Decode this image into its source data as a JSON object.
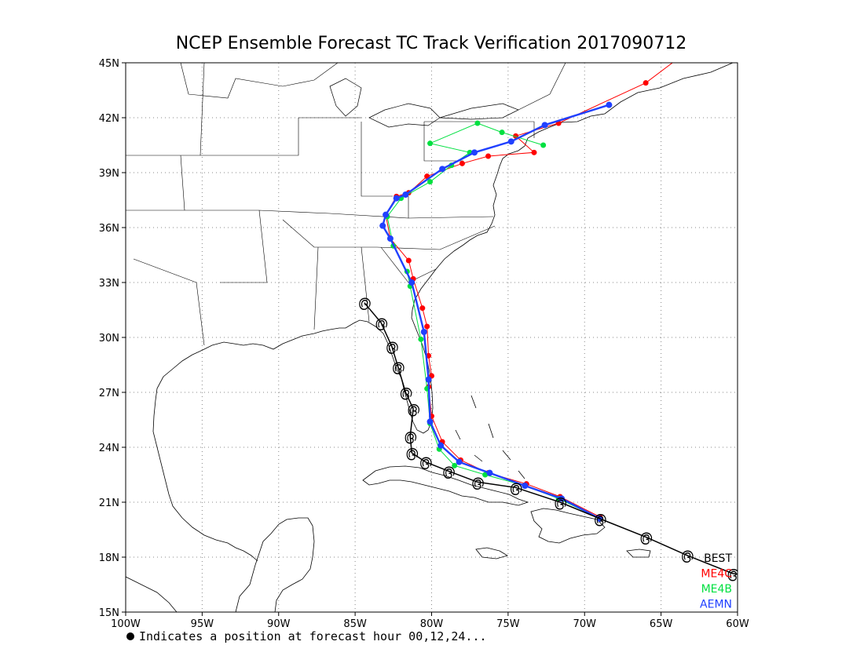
{
  "chart_data": {
    "type": "line",
    "title": "NCEP Ensemble Forecast TC Track Verification 2017090712",
    "xlim": [
      -100,
      -60
    ],
    "ylim": [
      15,
      45
    ],
    "x_ticks": [
      {
        "value": -100,
        "label": "100W"
      },
      {
        "value": -95,
        "label": "95W"
      },
      {
        "value": -90,
        "label": "90W"
      },
      {
        "value": -85,
        "label": "85W"
      },
      {
        "value": -80,
        "label": "80W"
      },
      {
        "value": -75,
        "label": "75W"
      },
      {
        "value": -70,
        "label": "70W"
      },
      {
        "value": -65,
        "label": "65W"
      },
      {
        "value": -60,
        "label": "60W"
      }
    ],
    "y_ticks": [
      {
        "value": 15,
        "label": "15N"
      },
      {
        "value": 18,
        "label": "18N"
      },
      {
        "value": 21,
        "label": "21N"
      },
      {
        "value": 24,
        "label": "24N"
      },
      {
        "value": 27,
        "label": "27N"
      },
      {
        "value": 30,
        "label": "30N"
      },
      {
        "value": 33,
        "label": "33N"
      },
      {
        "value": 36,
        "label": "36N"
      },
      {
        "value": 39,
        "label": "39N"
      },
      {
        "value": 42,
        "label": "42N"
      },
      {
        "value": 45,
        "label": "45N"
      }
    ],
    "grid": "dotted",
    "legend_position": "bottom-right",
    "colors": {
      "BEST": "#000000",
      "ME4C": "#ff0000",
      "ME4B": "#00e040",
      "AEMN": "#2040ff"
    },
    "series": [
      {
        "name": "BEST",
        "symbol": "hurricane",
        "points": [
          [
            -59.2,
            17.0
          ],
          [
            -60.3,
            17.1
          ],
          [
            -63.3,
            18.1
          ],
          [
            -66.0,
            19.1
          ],
          [
            -69.0,
            20.1
          ],
          [
            -71.6,
            21.0
          ],
          [
            -74.5,
            21.8
          ],
          [
            -77.0,
            22.1
          ],
          [
            -78.9,
            22.7
          ],
          [
            -80.4,
            23.2
          ],
          [
            -81.3,
            23.7
          ],
          [
            -81.4,
            24.6
          ],
          [
            -81.2,
            26.1
          ],
          [
            -81.7,
            27.0
          ],
          [
            -82.2,
            28.4
          ],
          [
            -82.6,
            29.5
          ],
          [
            -83.3,
            30.8
          ],
          [
            -84.4,
            31.9
          ]
        ]
      },
      {
        "name": "ME4C",
        "points": [
          [
            -69.0,
            20.2
          ],
          [
            -71.6,
            21.3
          ],
          [
            -73.8,
            22.0
          ],
          [
            -76.3,
            22.6
          ],
          [
            -78.1,
            23.3
          ],
          [
            -79.3,
            24.3
          ],
          [
            -80.0,
            25.7
          ],
          [
            -80.2,
            27.3
          ],
          [
            -80.0,
            27.9
          ],
          [
            -80.2,
            29.0
          ],
          [
            -80.3,
            30.6
          ],
          [
            -80.6,
            31.6
          ],
          [
            -81.2,
            33.2
          ],
          [
            -81.5,
            34.2
          ],
          [
            -82.7,
            35.4
          ],
          [
            -83.0,
            36.7
          ],
          [
            -82.3,
            37.7
          ],
          [
            -81.5,
            37.9
          ],
          [
            -80.3,
            38.8
          ],
          [
            -78.0,
            39.5
          ],
          [
            -76.3,
            39.9
          ],
          [
            -73.3,
            40.1
          ],
          [
            -74.5,
            41.0
          ],
          [
            -71.7,
            41.7
          ],
          [
            -66.0,
            43.9
          ],
          [
            -59.5,
            48.0
          ]
        ]
      },
      {
        "name": "ME4B",
        "points": [
          [
            -69.0,
            20.1
          ],
          [
            -71.7,
            21.2
          ],
          [
            -73.9,
            21.9
          ],
          [
            -76.5,
            22.5
          ],
          [
            -78.5,
            23.0
          ],
          [
            -79.5,
            23.9
          ],
          [
            -80.1,
            25.3
          ],
          [
            -80.3,
            27.2
          ],
          [
            -80.7,
            29.9
          ],
          [
            -81.4,
            32.8
          ],
          [
            -81.6,
            33.6
          ],
          [
            -82.5,
            35.0
          ],
          [
            -82.9,
            36.6
          ],
          [
            -82.0,
            37.6
          ],
          [
            -80.1,
            38.5
          ],
          [
            -78.7,
            39.4
          ],
          [
            -77.5,
            40.1
          ],
          [
            -80.1,
            40.6
          ],
          [
            -77.0,
            41.7
          ],
          [
            -75.4,
            41.2
          ],
          [
            -72.7,
            40.5
          ]
        ]
      },
      {
        "name": "AEMN",
        "points": [
          [
            -69.0,
            20.1
          ],
          [
            -71.5,
            21.2
          ],
          [
            -73.9,
            21.9
          ],
          [
            -76.2,
            22.6
          ],
          [
            -78.2,
            23.2
          ],
          [
            -79.4,
            24.1
          ],
          [
            -80.1,
            25.4
          ],
          [
            -80.2,
            27.7
          ],
          [
            -80.5,
            30.3
          ],
          [
            -81.3,
            33.0
          ],
          [
            -82.7,
            35.4
          ],
          [
            -83.2,
            36.1
          ],
          [
            -83.0,
            36.7
          ],
          [
            -82.3,
            37.6
          ],
          [
            -81.7,
            37.8
          ],
          [
            -79.3,
            39.2
          ],
          [
            -77.2,
            40.1
          ],
          [
            -74.8,
            40.7
          ],
          [
            -72.6,
            41.6
          ],
          [
            -68.4,
            42.7
          ]
        ]
      }
    ],
    "legend_labels": [
      "BEST",
      "ME4C",
      "ME4B",
      "AEMN"
    ],
    "footnote": "Indicates a position at forecast hour 00,12,24..."
  }
}
